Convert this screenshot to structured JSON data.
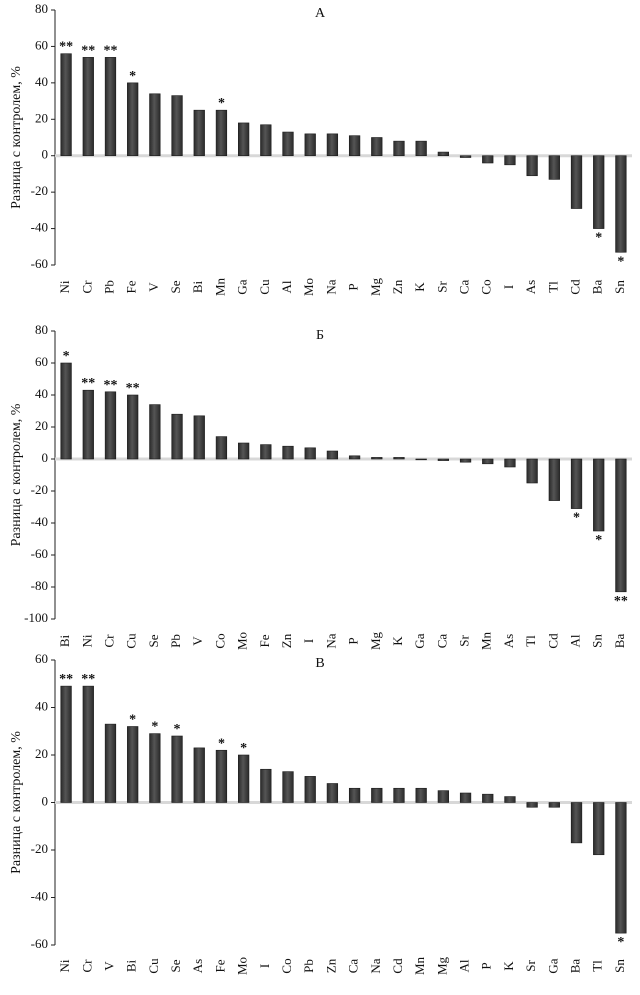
{
  "chart_data": [
    {
      "type": "bar",
      "title": "А",
      "ylabel": "Разница с контролем, %",
      "ylim": [
        -60,
        80
      ],
      "yticks": [
        -60,
        -40,
        -20,
        0,
        20,
        40,
        60,
        80
      ],
      "grid": false,
      "bar_color": "#3a3a3a",
      "categories": [
        "Ni",
        "Cr",
        "Pb",
        "Fe",
        "V",
        "Se",
        "Bi",
        "Mn",
        "Ga",
        "Cu",
        "Al",
        "Mo",
        "Na",
        "P",
        "Mg",
        "Zn",
        "K",
        "Sr",
        "Ca",
        "Co",
        "I",
        "As",
        "Tl",
        "Cd",
        "Ba",
        "Sn"
      ],
      "values": [
        56,
        54,
        54,
        40,
        34,
        33,
        25,
        25,
        18,
        17,
        13,
        12,
        12,
        11,
        10,
        8,
        8,
        2,
        -1,
        -4,
        -5,
        -11,
        -13,
        -29,
        -40,
        -53
      ],
      "significance": [
        "**",
        "**",
        "**",
        "*",
        "",
        "",
        "",
        "*",
        "",
        "",
        "",
        "",
        "",
        "",
        "",
        "",
        "",
        "",
        "",
        "",
        "",
        "",
        "",
        "",
        "*",
        "*"
      ]
    },
    {
      "type": "bar",
      "title": "Б",
      "ylabel": "Разница с контролем, %",
      "ylim": [
        -100,
        80
      ],
      "yticks": [
        -100,
        -80,
        -60,
        -40,
        -20,
        0,
        20,
        40,
        60,
        80
      ],
      "grid": false,
      "bar_color": "#3a3a3a",
      "categories": [
        "Bi",
        "Ni",
        "Cr",
        "Cu",
        "Se",
        "Pb",
        "V",
        "Co",
        "Mo",
        "Fe",
        "Zn",
        "I",
        "Na",
        "P",
        "Mg",
        "K",
        "Ga",
        "Ca",
        "Sr",
        "Mn",
        "As",
        "Tl",
        "Cd",
        "Al",
        "Sn",
        "Ba"
      ],
      "values": [
        60,
        43,
        42,
        40,
        34,
        28,
        27,
        14,
        10,
        9,
        8,
        7,
        5,
        2,
        1,
        1,
        0,
        -1,
        -2,
        -3,
        -5,
        -15,
        -26,
        -31,
        -45,
        -83
      ],
      "significance": [
        "*",
        "**",
        "**",
        "**",
        "",
        "",
        "",
        "",
        "",
        "",
        "",
        "",
        "",
        "",
        "",
        "",
        "",
        "",
        "",
        "",
        "",
        "",
        "",
        "*",
        "*",
        "**"
      ]
    },
    {
      "type": "bar",
      "title": "В",
      "ylabel": "Разница с контролем, %",
      "ylim": [
        -60,
        60
      ],
      "yticks": [
        -60,
        -40,
        -20,
        0,
        20,
        40,
        60
      ],
      "grid": false,
      "bar_color": "#3a3a3a",
      "categories": [
        "Ni",
        "Cr",
        "V",
        "Bi",
        "Cu",
        "Se",
        "As",
        "Fe",
        "Mo",
        "I",
        "Co",
        "Pb",
        "Zn",
        "Ca",
        "Na",
        "Cd",
        "Mn",
        "Mg",
        "Al",
        "P",
        "K",
        "Sr",
        "Ga",
        "Ba",
        "Tl",
        "Sn"
      ],
      "values": [
        49,
        49,
        33,
        32,
        29,
        28,
        23,
        22,
        20,
        14,
        13,
        11,
        8,
        6,
        6,
        6,
        6,
        5,
        4,
        3.5,
        2.5,
        -2,
        -2,
        -17,
        -22,
        -55
      ],
      "significance": [
        "**",
        "**",
        "",
        "*",
        "*",
        "*",
        "",
        "*",
        "*",
        "",
        "",
        "",
        "",
        "",
        "",
        "",
        "",
        "",
        "",
        "",
        "",
        "",
        "",
        "",
        "",
        "*"
      ]
    }
  ]
}
